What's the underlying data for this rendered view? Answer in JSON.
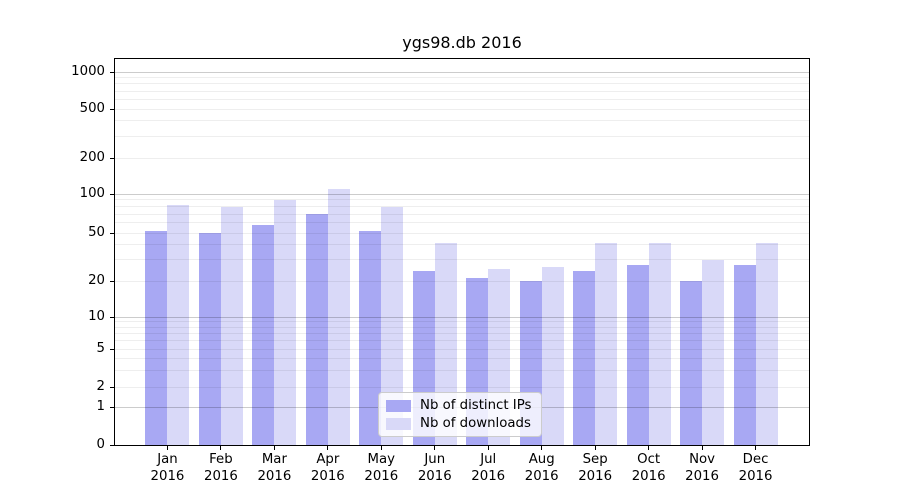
{
  "title": "ygs98.db 2016",
  "chart_data": {
    "type": "bar",
    "title": "ygs98.db 2016",
    "categories": [
      "Jan\n2016",
      "Feb\n2016",
      "Mar\n2016",
      "Apr\n2016",
      "May\n2016",
      "Jun\n2016",
      "Jul\n2016",
      "Aug\n2016",
      "Sep\n2016",
      "Oct\n2016",
      "Nov\n2016",
      "Dec\n2016"
    ],
    "series": [
      {
        "name": "Nb of distinct IPs",
        "color": "#a8a8f3",
        "values": [
          52,
          50,
          58,
          70,
          52,
          24,
          21,
          20,
          24,
          27,
          20,
          27
        ]
      },
      {
        "name": "Nb of downloads",
        "color": "#d9d9f8",
        "values": [
          82,
          79,
          90,
          110,
          79,
          41,
          25,
          26,
          41,
          41,
          30,
          41
        ]
      }
    ],
    "xlabel": "",
    "ylabel": "",
    "yscale": "symlog",
    "yticks": [
      0,
      1,
      2,
      5,
      10,
      20,
      50,
      100,
      200,
      500,
      1000
    ],
    "minor_gridlines": [
      2,
      3,
      4,
      5,
      6,
      7,
      8,
      9,
      20,
      30,
      40,
      50,
      60,
      70,
      80,
      90,
      200,
      300,
      400,
      500,
      600,
      700,
      800,
      900
    ],
    "major_gridlines": [
      1,
      10,
      100,
      1000
    ],
    "ylim": [
      0,
      1300
    ],
    "grid": true,
    "legend_position": "lower-center"
  }
}
